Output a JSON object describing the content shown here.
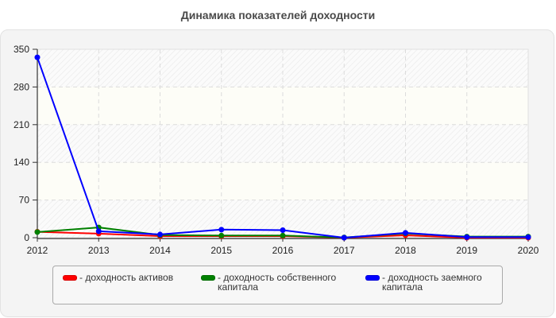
{
  "title": "Динамика показателей доходности",
  "chart_data": {
    "type": "line",
    "title": "Динамика показателей доходности",
    "xlabel": "",
    "ylabel": "",
    "x": [
      "2012",
      "2013",
      "2014",
      "2015",
      "2016",
      "2017",
      "2018",
      "2019",
      "2020"
    ],
    "yticks": [
      "0",
      "70",
      "140",
      "210",
      "280",
      "350"
    ],
    "ylim": [
      0,
      350
    ],
    "grid": true,
    "legend_position": "bottom",
    "series": [
      {
        "name": "доходность активов",
        "color": "#ff0000",
        "values": [
          11,
          7.5,
          3,
          3,
          3,
          0,
          4.5,
          0,
          0
        ]
      },
      {
        "name": "доходность собственного капитала",
        "color": "#008000",
        "values": [
          10.5,
          19,
          5,
          4,
          4,
          0.5,
          8,
          2,
          2
        ]
      },
      {
        "name": "доходность заемного капитала",
        "color": "#0000ff",
        "values": [
          335,
          12,
          6,
          15,
          14,
          0,
          9,
          1,
          1
        ]
      }
    ]
  },
  "legend": [
    {
      "label": "- доходность активов",
      "color": "#ff0000"
    },
    {
      "label": "- доходность собственного\nкапитала",
      "color": "#008000"
    },
    {
      "label": "- доходность заемного\nкапитала",
      "color": "#0000ff"
    }
  ]
}
